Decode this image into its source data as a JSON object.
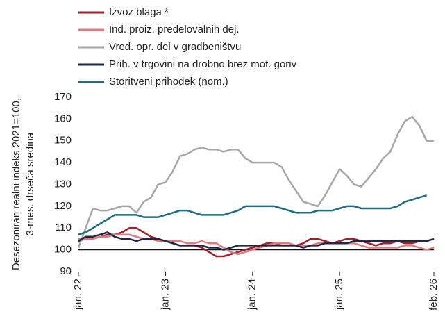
{
  "chart_data": {
    "type": "line",
    "ylabel": [
      "Desezoniran realni indeks 2021=100,",
      "3-mes. drseča sredina"
    ],
    "categories": [
      "jan. 22",
      null,
      null,
      null,
      null,
      null,
      null,
      null,
      null,
      null,
      null,
      null,
      "jan. 23",
      null,
      null,
      null,
      null,
      null,
      null,
      null,
      null,
      null,
      null,
      null,
      "jan. 24",
      null,
      null,
      null,
      null,
      null,
      null,
      null,
      null,
      null,
      null,
      null,
      "jan. 25",
      null,
      null,
      null,
      null,
      null,
      null,
      null,
      null,
      null,
      null,
      null,
      null,
      "feb. 26"
    ],
    "ylim": [
      90,
      170
    ],
    "yticks": [
      90,
      100,
      110,
      120,
      130,
      140,
      150,
      160,
      170
    ],
    "grid": false,
    "baseline": 100,
    "legend": "top-left",
    "series": [
      {
        "name": "Izvoz blaga *",
        "color": "#a3202b",
        "values": [
          104,
          105,
          105,
          106,
          107,
          107,
          108,
          110,
          110,
          108,
          106,
          105,
          104,
          103,
          102,
          102,
          102,
          101,
          99,
          97,
          97,
          98,
          99,
          100,
          101,
          102,
          103,
          103,
          102,
          102,
          102,
          103,
          105,
          105,
          104,
          103,
          104,
          105,
          105,
          104,
          103,
          102,
          103,
          103,
          104,
          103,
          103,
          104,
          104,
          105
        ]
      },
      {
        "name": "Ind. proiz. predelovalnih dej.",
        "color": "#e07a80",
        "values": [
          105,
          105,
          105,
          106,
          106,
          107,
          107,
          107,
          106,
          105,
          105,
          104,
          104,
          104,
          104,
          103,
          103,
          104,
          103,
          103,
          101,
          99,
          98,
          99,
          100,
          101,
          102,
          103,
          103,
          103,
          102,
          102,
          102,
          103,
          103,
          103,
          103,
          103,
          103,
          102,
          101,
          101,
          101,
          101,
          101,
          102,
          102,
          101,
          100,
          101
        ]
      },
      {
        "name": "Vred. opr. del v gradbeništvu",
        "color": "#a6a6a6",
        "values": [
          101,
          110,
          119,
          118,
          118,
          119,
          120,
          120,
          117,
          122,
          124,
          130,
          131,
          136,
          143,
          144,
          146,
          147,
          146,
          146,
          145,
          146,
          146,
          142,
          140,
          140,
          140,
          140,
          138,
          132,
          127,
          122,
          121,
          120,
          125,
          131,
          137,
          134,
          130,
          129,
          133,
          137,
          142,
          145,
          153,
          159,
          161,
          157,
          150,
          150
        ]
      },
      {
        "name": "Prih. v trgovini na drobno brez mot. goriv",
        "color": "#1d2845",
        "values": [
          104,
          106,
          106,
          107,
          108,
          106,
          105,
          105,
          104,
          105,
          105,
          105,
          104,
          103,
          102,
          102,
          102,
          102,
          101,
          101,
          100,
          101,
          102,
          102,
          102,
          102,
          102,
          102,
          102,
          102,
          102,
          101,
          102,
          102,
          103,
          103,
          103,
          103,
          104,
          104,
          104,
          104,
          104,
          104,
          104,
          104,
          104,
          104,
          104,
          105
        ]
      },
      {
        "name": "Storitveni prihodek (nom.)",
        "color": "#1f6e7c",
        "values": [
          107,
          108,
          110,
          112,
          114,
          116,
          116,
          116,
          116,
          115,
          115,
          115,
          116,
          117,
          118,
          118,
          117,
          116,
          116,
          116,
          116,
          117,
          118,
          120,
          120,
          120,
          120,
          120,
          119,
          118,
          117,
          117,
          117,
          118,
          118,
          118,
          119,
          120,
          120,
          119,
          119,
          119,
          119,
          119,
          120,
          122,
          123,
          124,
          125,
          null
        ]
      }
    ]
  }
}
